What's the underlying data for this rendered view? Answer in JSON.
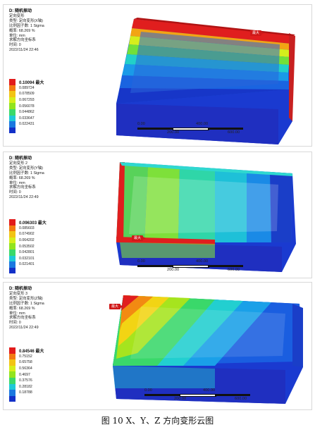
{
  "panels": [
    {
      "title": "D: 随机振动",
      "lines": [
        "定向变形",
        "类型: 定向变形(X轴)",
        "比例因子数: 1 Sigma",
        "概率: 68.269 %",
        "单位: mm",
        "求解方向坐标系",
        "时间: 0",
        "2022/11/24 22:46"
      ],
      "max_label": "0.10094 最大",
      "values": [
        "0.089724",
        "0.078509",
        "0.067293",
        "0.056078",
        "0.044862",
        "0.033647",
        "0.022431"
      ],
      "tag": "最大",
      "scale_ticks": [
        "0.00",
        "200.00",
        "400.00",
        "600.00"
      ]
    },
    {
      "title": "D: 随机振动",
      "lines": [
        "定向变形 2",
        "类型: 定向变形(Y轴)",
        "比例因子数: 1 Sigma",
        "概率: 68.269 %",
        "单位: mm",
        "求解方向坐标系",
        "时间: 0",
        "2022/11/24 22:49"
      ],
      "max_label": "0.096303 最大",
      "values": [
        "0.085603",
        "0.074902",
        "0.064202",
        "0.053502",
        "0.042801",
        "0.032101",
        "0.021401"
      ],
      "tag": "最大",
      "scale_ticks": [
        "0.00",
        "200.00",
        "400.00",
        "600.00"
      ]
    },
    {
      "title": "D: 随机振动",
      "lines": [
        "定向变形 3",
        "类型: 定向变形(Z轴)",
        "比例因子数: 1 Sigma",
        "概率: 68.269 %",
        "单位: mm",
        "求解方向坐标系",
        "时间: 0",
        "2022/11/24 22:49"
      ],
      "max_label": "0.84546 最大",
      "values": [
        "0.75152",
        "0.65758",
        "0.56364",
        "0.4697",
        "0.37576",
        "0.28182",
        "0.18788"
      ],
      "tag": "最大",
      "scale_ticks": [
        "0.00",
        "200.00",
        "400.00",
        "600.00"
      ]
    }
  ],
  "colors": {
    "legend": [
      "#e21b1b",
      "#f27a12",
      "#f2c414",
      "#d7ee1a",
      "#92e41e",
      "#3ad96a",
      "#1ec9d8",
      "#1a78e0",
      "#1230c8"
    ],
    "tag_bg": "#d01818"
  },
  "caption": "图 10 X、Y、Z 方向变形云图"
}
